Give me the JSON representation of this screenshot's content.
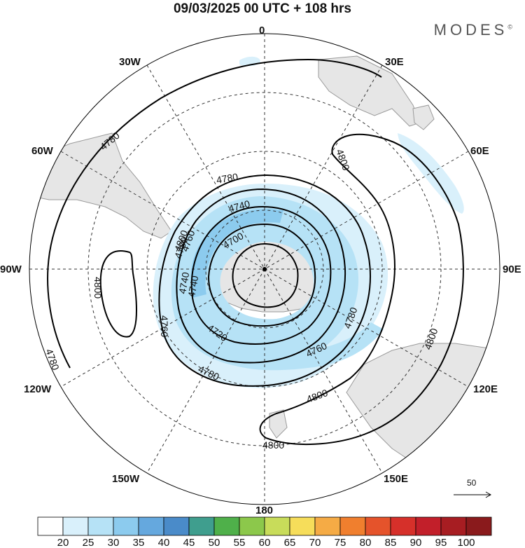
{
  "title": "09/03/2025  00 UTC  + 108 hrs",
  "brand": "MODES",
  "brand_mark": "©",
  "projection": "south polar stereographic",
  "longitude_labels": {
    "top": "0",
    "upper_left": "30W",
    "upper_right": "30E",
    "left_upper": "60W",
    "right_upper": "60E",
    "left": "90W",
    "right": "90E",
    "left_lower": "120W",
    "right_lower": "120E",
    "lower_left": "150W",
    "lower_right": "150E",
    "bottom": "180"
  },
  "contour_labels": [
    "4780",
    "4780",
    "4780",
    "4780",
    "4780",
    "4780",
    "4800",
    "4800",
    "4800",
    "4800",
    "4800",
    "4800",
    "4760",
    "4760",
    "4760",
    "4740",
    "4740",
    "4740",
    "4720",
    "4700"
  ],
  "reference_vector": {
    "value": "50"
  },
  "colorbar": {
    "ticks": [
      "20",
      "25",
      "30",
      "35",
      "40",
      "45",
      "50",
      "55",
      "60",
      "65",
      "70",
      "75",
      "80",
      "85",
      "90",
      "95",
      "100"
    ],
    "colors": [
      "#ffffff",
      "#d9f0fb",
      "#b6e2f6",
      "#8ccbee",
      "#65a8de",
      "#4a8bc9",
      "#3f9e8e",
      "#4fb04a",
      "#8cc84b",
      "#c8dc5a",
      "#f6dd5a",
      "#f5ab45",
      "#f07f2e",
      "#e5532b",
      "#d6302a",
      "#c21f2a",
      "#a71d22",
      "#8a1a1c"
    ]
  },
  "colors": {
    "land": "#e6e6e6",
    "coast": "#9a9a9a",
    "contour": "#000000",
    "graticule": "#333333"
  }
}
